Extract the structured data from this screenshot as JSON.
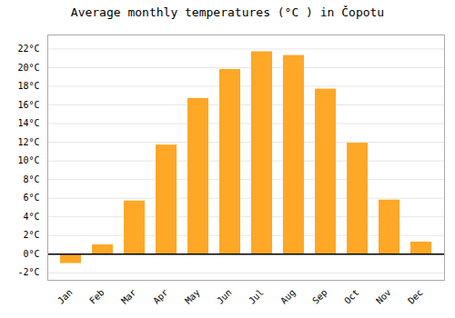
{
  "chart_data": {
    "type": "bar",
    "title": "Average monthly temperatures (°C ) in Čopotu",
    "categories": [
      "Jan",
      "Feb",
      "Mar",
      "Apr",
      "May",
      "Jun",
      "Jul",
      "Aug",
      "Sep",
      "Oct",
      "Nov",
      "Dec"
    ],
    "values": [
      -1.0,
      1.0,
      5.7,
      11.7,
      16.7,
      19.8,
      21.7,
      21.3,
      17.7,
      11.9,
      5.8,
      1.3
    ],
    "color": "#FFA726",
    "ylim": [
      -2.8,
      23.5
    ],
    "yticks": [
      {
        "value": -2,
        "label": "-2°C"
      },
      {
        "value": 0,
        "label": "0°C"
      },
      {
        "value": 2,
        "label": "2°C"
      },
      {
        "value": 4,
        "label": "4°C"
      },
      {
        "value": 6,
        "label": "6°C"
      },
      {
        "value": 8,
        "label": "8°C"
      },
      {
        "value": 10,
        "label": "10°C"
      },
      {
        "value": 12,
        "label": "12°C"
      },
      {
        "value": 14,
        "label": "14°C"
      },
      {
        "value": 16,
        "label": "16°C"
      },
      {
        "value": 18,
        "label": "18°C"
      },
      {
        "value": 20,
        "label": "20°C"
      },
      {
        "value": 22,
        "label": "22°C"
      }
    ],
    "grid": true
  }
}
